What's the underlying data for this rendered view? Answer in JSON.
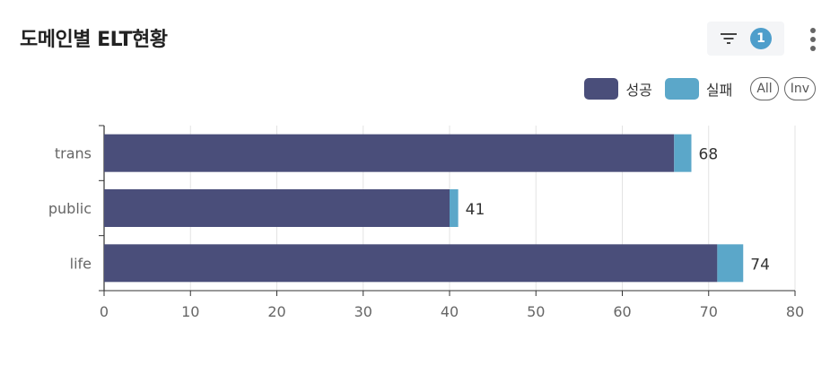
{
  "header": {
    "title": "도메인별 ELT현황",
    "filter_count": "1"
  },
  "legend": {
    "items": [
      {
        "label": "성공",
        "color": "#4a4e7a"
      },
      {
        "label": "실패",
        "color": "#5ba7c9"
      }
    ],
    "all_label": "All",
    "inv_label": "Inv"
  },
  "chart_data": {
    "type": "bar",
    "orientation": "horizontal",
    "stacked": true,
    "categories": [
      "trans",
      "public",
      "life"
    ],
    "series": [
      {
        "name": "성공",
        "values": [
          66,
          40,
          71
        ],
        "color": "#4a4e7a"
      },
      {
        "name": "실패",
        "values": [
          2,
          1,
          3
        ],
        "color": "#5ba7c9"
      }
    ],
    "totals": [
      68,
      41,
      74
    ],
    "xlim": [
      0,
      80
    ],
    "xticks": [
      0,
      10,
      20,
      30,
      40,
      50,
      60,
      70,
      80
    ],
    "grid": true,
    "legend_position": "top-right"
  }
}
